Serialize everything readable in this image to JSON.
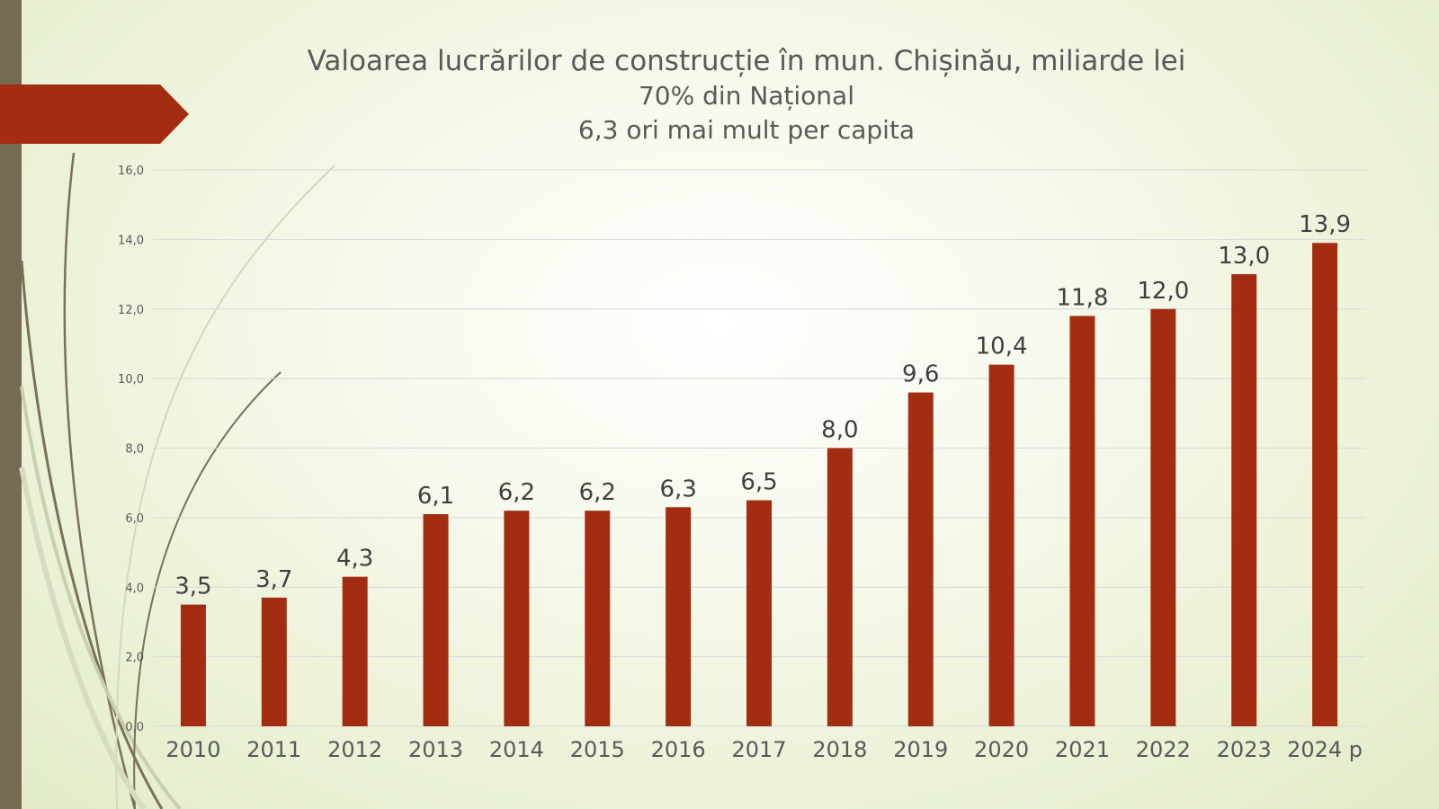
{
  "title": "Valoarea lucrărilor de construcție în mun. Chișinău, miliarde lei",
  "subtitle1": "70% din Național",
  "subtitle2": "6,3 ori mai mult per capita",
  "colors": {
    "bar": "#a42d11",
    "accent_tab": "#a42d11",
    "strip": "#746b52",
    "grid": "#d9d9d9"
  },
  "chart_data": {
    "type": "bar",
    "title": "Valoarea lucrărilor de construcție în mun. Chișinău, miliarde lei",
    "categories": [
      "2010",
      "2011",
      "2012",
      "2013",
      "2014",
      "2015",
      "2016",
      "2017",
      "2018",
      "2019",
      "2020",
      "2021",
      "2022",
      "2023",
      "2024 p"
    ],
    "values": [
      3.5,
      3.7,
      4.3,
      6.1,
      6.2,
      6.2,
      6.3,
      6.5,
      8.0,
      9.6,
      10.4,
      11.8,
      12.0,
      13.0,
      13.9
    ],
    "value_labels": [
      "3,5",
      "3,7",
      "4,3",
      "6,1",
      "6,2",
      "6,2",
      "6,3",
      "6,5",
      "8,0",
      "9,6",
      "10,4",
      "11,8",
      "12,0",
      "13,0",
      "13,9"
    ],
    "ylim": [
      0,
      16
    ],
    "yticks": [
      0,
      2,
      4,
      6,
      8,
      10,
      12,
      14,
      16
    ],
    "ytick_labels": [
      "0,0",
      "2,0",
      "4,0",
      "6,0",
      "8,0",
      "10,0",
      "12,0",
      "14,0",
      "16,0"
    ],
    "xlabel": "",
    "ylabel": "",
    "grid": true
  }
}
